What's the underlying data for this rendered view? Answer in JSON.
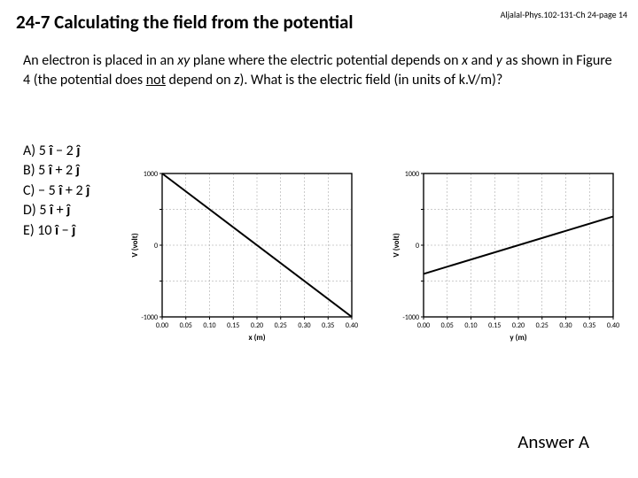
{
  "header": {
    "title": "24-7 Calculating the field from the potential",
    "page_ref": "Aljalal-Phys.102-131-Ch 24-page 14"
  },
  "problem": {
    "line1_pre": "An electron is placed in an ",
    "line1_xy": "xy",
    "line1_mid": " plane where the electric potential depends on ",
    "line1_x": "x",
    "line1_and": " and ",
    "line2_y": "y",
    "line2_mid": " as shown in Figure 4 (the potential does ",
    "line2_not_u": "not",
    "line2_end1": " depend on ",
    "line2_z": "z",
    "line2_end2": "). What is the electric field (in units of k.V/m)?"
  },
  "choices": [
    {
      "label": "A) 5 ",
      "i": "î",
      "mid": " − 2 ",
      "j": "ĵ"
    },
    {
      "label": "B) 5 ",
      "i": "î",
      "mid": " + 2 ",
      "j": "ĵ"
    },
    {
      "label": "C) − 5 ",
      "i": "î",
      "mid": " + 2 ",
      "j": "ĵ"
    },
    {
      "label": "D) 5 ",
      "i": "î",
      "mid": " + ",
      "j": "ĵ"
    },
    {
      "label": "E) 10 ",
      "i": "î",
      "mid": " − ",
      "j": "ĵ"
    }
  ],
  "answer": "Answer A",
  "chart_left": {
    "type": "line",
    "xlabel": "x (m)",
    "ylabel": "V (volt)",
    "xlim": [
      0.0,
      0.4
    ],
    "ylim": [
      -1000,
      1000
    ],
    "xticks": [
      0.0,
      0.05,
      0.1,
      0.15,
      0.2,
      0.25,
      0.3,
      0.35,
      0.4
    ],
    "yticks": [
      -1000,
      -500,
      0,
      500,
      1000
    ],
    "ytick_labels": [
      "-1000",
      "",
      "0",
      "",
      "1000"
    ],
    "grid_color": "#9a9a9a",
    "axis_color": "#000000",
    "background_color": "#ffffff",
    "line_color": "#000000",
    "line_width": 2,
    "tick_fontsize": 8,
    "label_fontsize": 9,
    "series": {
      "x": [
        0.0,
        0.4
      ],
      "y": [
        1000,
        -1000
      ]
    }
  },
  "chart_right": {
    "type": "line",
    "xlabel": "y (m)",
    "ylabel": "V (volt)",
    "xlim": [
      0.0,
      0.4
    ],
    "ylim": [
      -1000,
      1000
    ],
    "xticks": [
      0.0,
      0.05,
      0.1,
      0.15,
      0.2,
      0.25,
      0.3,
      0.35,
      0.4
    ],
    "yticks": [
      -1000,
      -500,
      0,
      500,
      1000
    ],
    "ytick_labels": [
      "-1000",
      "",
      "0",
      "",
      "1000"
    ],
    "grid_color": "#9a9a9a",
    "axis_color": "#000000",
    "background_color": "#ffffff",
    "line_color": "#000000",
    "line_width": 2,
    "tick_fontsize": 8,
    "label_fontsize": 9,
    "series": {
      "x": [
        0.0,
        0.4
      ],
      "y": [
        -400,
        400
      ]
    }
  }
}
